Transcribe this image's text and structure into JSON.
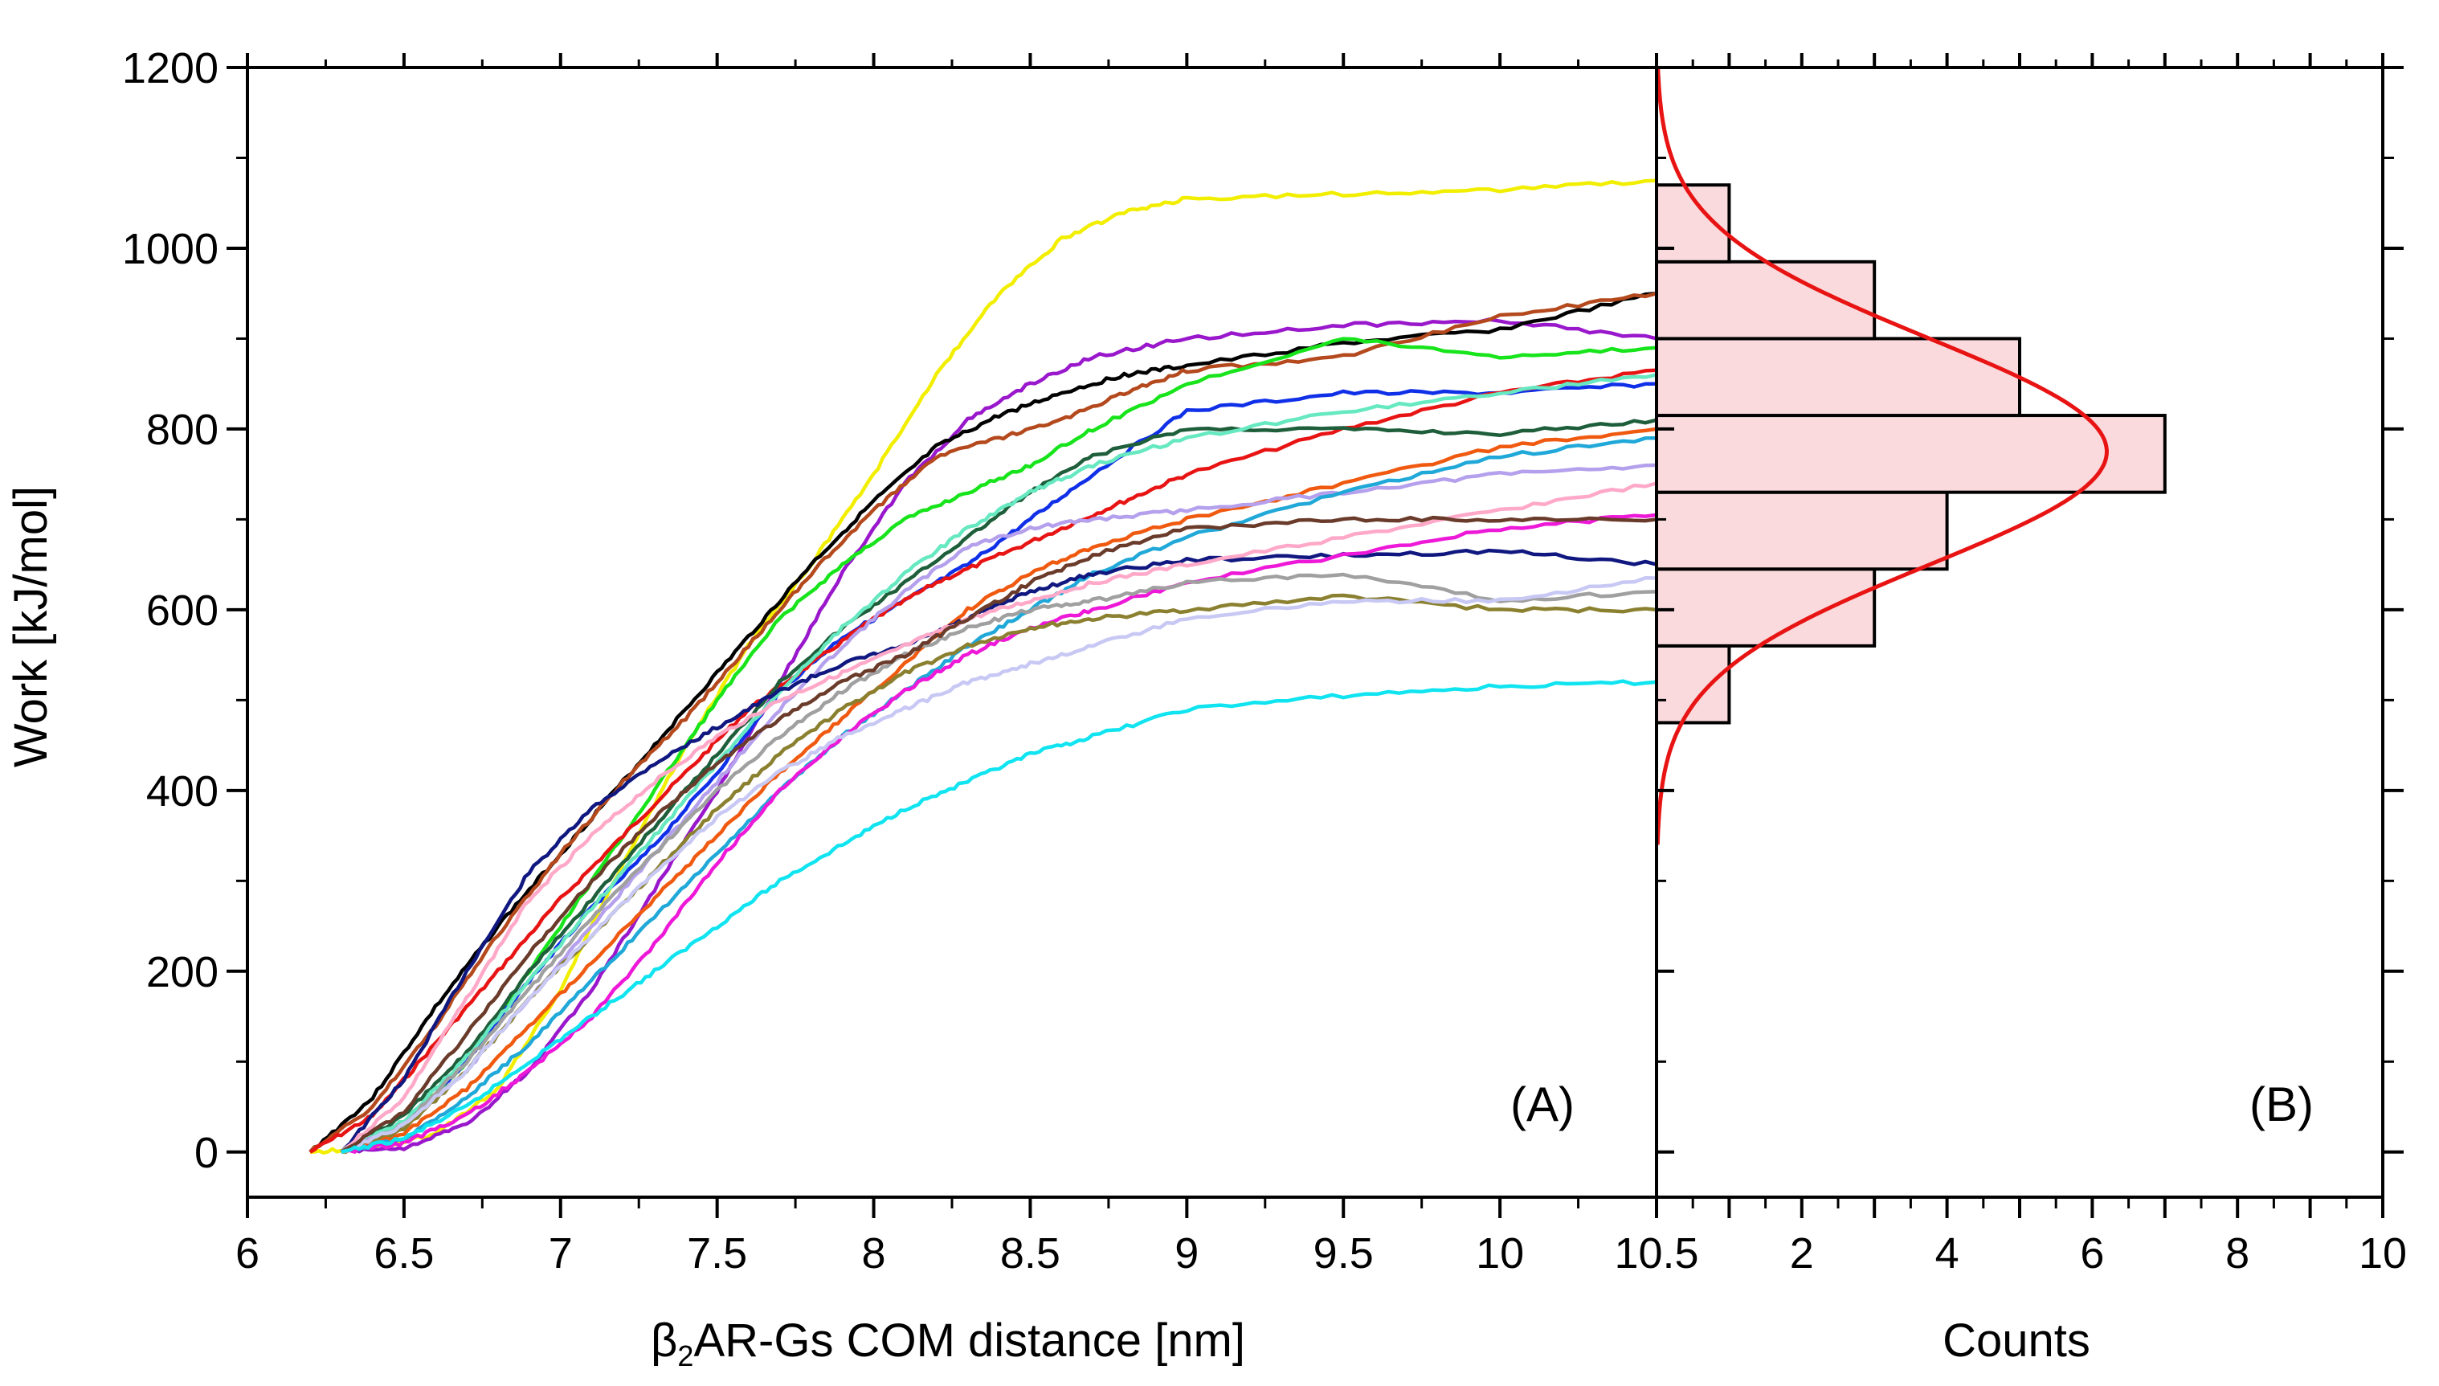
{
  "chart_data": [
    {
      "id": "panel-a",
      "type": "line",
      "panel_label": "(A)",
      "xlabel_prefix": "β",
      "xlabel_sub": "2",
      "xlabel_rest": "AR-Gs COM distance [nm]",
      "ylabel": "Work [kJ/mol]",
      "xlim": [
        6.0,
        10.5
      ],
      "ylim": [
        -50,
        1200
      ],
      "x_ticks": [
        6,
        6.5,
        7,
        7.5,
        8,
        8.5,
        9,
        9.5,
        10,
        10.5
      ],
      "x_tick_labels": [
        "6",
        "6.5",
        "7",
        "7.5",
        "8",
        "8.5",
        "9",
        "9.5",
        "10",
        "10.5"
      ],
      "y_ticks": [
        0,
        200,
        400,
        600,
        800,
        1000,
        1200
      ],
      "y_tick_labels": [
        "0",
        "200",
        "400",
        "600",
        "800",
        "1000",
        "1200"
      ],
      "grid": false,
      "series": [
        {
          "name": "yellow",
          "color": "#f2ee00",
          "x": [
            6.2,
            6.4,
            6.6,
            6.8,
            7.0,
            7.2,
            7.4,
            7.6,
            7.8,
            8.0,
            8.2,
            8.4,
            8.6,
            8.8,
            9.0,
            9.5,
            10.0,
            10.5
          ],
          "y": [
            0,
            5,
            20,
            70,
            180,
            320,
            450,
            560,
            650,
            750,
            860,
            950,
            1010,
            1040,
            1055,
            1060,
            1065,
            1075
          ]
        },
        {
          "name": "purple",
          "color": "#9a18cc",
          "x": [
            6.3,
            6.5,
            6.7,
            6.9,
            7.1,
            7.3,
            7.5,
            7.7,
            7.9,
            8.1,
            8.3,
            8.5,
            8.7,
            9.0,
            9.5,
            10.0,
            10.5
          ],
          "y": [
            0,
            5,
            30,
            90,
            180,
            290,
            400,
            520,
            640,
            740,
            810,
            850,
            880,
            900,
            915,
            920,
            900
          ]
        },
        {
          "name": "black",
          "color": "#000000",
          "x": [
            6.2,
            6.4,
            6.6,
            6.8,
            7.0,
            7.2,
            7.4,
            7.6,
            7.8,
            8.0,
            8.2,
            8.4,
            8.6,
            8.8,
            9.0,
            9.5,
            10.0,
            10.5
          ],
          "y": [
            0,
            60,
            160,
            250,
            330,
            410,
            490,
            570,
            650,
            720,
            780,
            815,
            840,
            860,
            870,
            895,
            910,
            950
          ]
        },
        {
          "name": "brown-orange",
          "color": "#b4491d",
          "x": [
            6.2,
            6.4,
            6.6,
            6.8,
            7.0,
            7.2,
            7.4,
            7.6,
            7.8,
            8.0,
            8.2,
            8.4,
            8.6,
            8.8,
            9.0,
            9.5,
            10.0,
            10.5
          ],
          "y": [
            0,
            50,
            140,
            240,
            330,
            410,
            480,
            560,
            640,
            710,
            770,
            790,
            810,
            840,
            865,
            880,
            925,
            950
          ]
        },
        {
          "name": "green",
          "color": "#18e41c",
          "x": [
            6.3,
            6.5,
            6.7,
            6.9,
            7.1,
            7.3,
            7.5,
            7.7,
            7.9,
            8.1,
            8.3,
            8.5,
            8.7,
            9.0,
            9.5,
            10.0,
            10.5
          ],
          "y": [
            0,
            30,
            100,
            200,
            300,
            400,
            500,
            590,
            650,
            700,
            730,
            760,
            800,
            850,
            900,
            880,
            890
          ]
        },
        {
          "name": "blue",
          "color": "#1030e8",
          "x": [
            6.3,
            6.5,
            6.7,
            6.9,
            7.1,
            7.3,
            7.5,
            7.7,
            7.9,
            8.1,
            8.3,
            8.5,
            8.7,
            9.0,
            9.5,
            10.0,
            10.5
          ],
          "y": [
            0,
            30,
            100,
            190,
            270,
            340,
            420,
            510,
            570,
            610,
            650,
            700,
            750,
            820,
            840,
            840,
            850
          ]
        },
        {
          "name": "red",
          "color": "#e81414",
          "x": [
            6.2,
            6.4,
            6.6,
            6.8,
            7.0,
            7.2,
            7.4,
            7.6,
            7.8,
            8.0,
            8.2,
            8.4,
            8.6,
            8.8,
            9.0,
            9.5,
            10.0,
            10.5
          ],
          "y": [
            0,
            40,
            120,
            200,
            280,
            350,
            420,
            490,
            540,
            590,
            630,
            660,
            690,
            720,
            750,
            800,
            840,
            865
          ]
        },
        {
          "name": "dark-green",
          "color": "#1e5e3a",
          "x": [
            6.3,
            6.5,
            6.7,
            6.9,
            7.1,
            7.3,
            7.5,
            7.7,
            7.9,
            8.1,
            8.3,
            8.5,
            8.7,
            9.0,
            9.5,
            10.0,
            10.5
          ],
          "y": [
            0,
            40,
            110,
            200,
            280,
            360,
            440,
            520,
            580,
            630,
            680,
            730,
            770,
            800,
            800,
            795,
            810
          ]
        },
        {
          "name": "aquamarine",
          "color": "#66e8c0",
          "x": [
            6.3,
            6.5,
            6.7,
            6.9,
            7.1,
            7.3,
            7.5,
            7.7,
            7.9,
            8.1,
            8.3,
            8.5,
            8.7,
            9.0,
            9.5,
            10.0,
            10.5
          ],
          "y": [
            0,
            35,
            105,
            190,
            270,
            350,
            430,
            510,
            580,
            640,
            690,
            730,
            760,
            790,
            820,
            840,
            860
          ]
        },
        {
          "name": "orange",
          "color": "#f05a10",
          "x": [
            6.3,
            6.5,
            6.7,
            6.9,
            7.1,
            7.3,
            7.5,
            7.7,
            7.9,
            8.1,
            8.3,
            8.5,
            8.7,
            9.0,
            9.5,
            10.0,
            10.5
          ],
          "y": [
            0,
            20,
            70,
            140,
            210,
            280,
            350,
            420,
            480,
            540,
            600,
            640,
            670,
            700,
            740,
            780,
            800
          ]
        },
        {
          "name": "lavender",
          "color": "#b4a0ec",
          "x": [
            6.3,
            6.5,
            6.7,
            6.9,
            7.1,
            7.3,
            7.5,
            7.7,
            7.9,
            8.1,
            8.3,
            8.5,
            8.7,
            9.0,
            9.5,
            10.0,
            10.5
          ],
          "y": [
            0,
            30,
            90,
            170,
            250,
            330,
            410,
            490,
            560,
            620,
            670,
            690,
            700,
            710,
            730,
            750,
            760
          ]
        },
        {
          "name": "sky-blue",
          "color": "#20a8d8",
          "x": [
            6.3,
            6.5,
            6.7,
            6.9,
            7.1,
            7.3,
            7.5,
            7.7,
            7.9,
            8.1,
            8.3,
            8.5,
            8.7,
            9.0,
            9.5,
            10.0,
            10.5
          ],
          "y": [
            0,
            15,
            60,
            120,
            190,
            260,
            330,
            400,
            460,
            510,
            560,
            600,
            640,
            680,
            730,
            770,
            790
          ]
        },
        {
          "name": "navy",
          "color": "#101880",
          "x": [
            6.3,
            6.5,
            6.7,
            6.9,
            7.1,
            7.3,
            7.5,
            7.7,
            7.9,
            8.1,
            8.3,
            8.5,
            8.7,
            9.0,
            9.5,
            10.0,
            10.5
          ],
          "y": [
            0,
            80,
            200,
            310,
            380,
            430,
            470,
            510,
            540,
            560,
            590,
            620,
            640,
            655,
            660,
            665,
            650
          ]
        },
        {
          "name": "pink",
          "color": "#ffa8c8",
          "x": [
            6.3,
            6.5,
            6.7,
            6.9,
            7.1,
            7.3,
            7.5,
            7.7,
            7.9,
            8.1,
            8.3,
            8.5,
            8.7,
            9.0,
            9.5,
            10.0,
            10.5
          ],
          "y": [
            0,
            60,
            170,
            280,
            350,
            410,
            460,
            500,
            530,
            560,
            590,
            610,
            630,
            650,
            680,
            710,
            740
          ]
        },
        {
          "name": "magenta",
          "color": "#ee18d8",
          "x": [
            6.3,
            6.5,
            6.7,
            6.9,
            7.1,
            7.3,
            7.5,
            7.7,
            7.9,
            8.1,
            8.3,
            8.5,
            8.7,
            9.0,
            9.5,
            10.0,
            10.5
          ],
          "y": [
            0,
            10,
            40,
            90,
            150,
            230,
            320,
            400,
            460,
            510,
            550,
            580,
            600,
            630,
            660,
            690,
            705
          ]
        },
        {
          "name": "gray",
          "color": "#a0a0a0",
          "x": [
            6.3,
            6.5,
            6.7,
            6.9,
            7.1,
            7.3,
            7.5,
            7.7,
            7.9,
            8.1,
            8.3,
            8.5,
            8.7,
            9.0,
            9.5,
            10.0,
            10.5
          ],
          "y": [
            0,
            30,
            100,
            180,
            260,
            330,
            400,
            460,
            510,
            550,
            580,
            600,
            610,
            630,
            640,
            610,
            620
          ]
        },
        {
          "name": "olive",
          "color": "#8a8030",
          "x": [
            6.3,
            6.5,
            6.7,
            6.9,
            7.1,
            7.3,
            7.5,
            7.7,
            7.9,
            8.1,
            8.3,
            8.5,
            8.7,
            9.0,
            9.5,
            10.0,
            10.5
          ],
          "y": [
            0,
            25,
            90,
            170,
            240,
            310,
            380,
            440,
            490,
            530,
            560,
            580,
            590,
            600,
            615,
            600,
            600
          ]
        },
        {
          "name": "light-periwinkle",
          "color": "#c8c8f4",
          "x": [
            6.3,
            6.5,
            6.7,
            6.9,
            7.1,
            7.3,
            7.5,
            7.7,
            7.9,
            8.1,
            8.3,
            8.5,
            8.7,
            9.0,
            9.5,
            10.0,
            10.5
          ],
          "y": [
            0,
            30,
            90,
            170,
            240,
            310,
            370,
            420,
            460,
            490,
            520,
            540,
            560,
            590,
            610,
            610,
            635
          ]
        },
        {
          "name": "dark-brown",
          "color": "#6a3b2a",
          "x": [
            6.3,
            6.5,
            6.7,
            6.9,
            7.1,
            7.3,
            7.5,
            7.7,
            7.9,
            8.1,
            8.3,
            8.5,
            8.7,
            9.0,
            9.5,
            10.0,
            10.5
          ],
          "y": [
            0,
            45,
            130,
            220,
            300,
            370,
            430,
            480,
            520,
            550,
            590,
            630,
            660,
            690,
            700,
            700,
            700
          ]
        },
        {
          "name": "cyan",
          "color": "#10e4f0",
          "x": [
            6.3,
            6.5,
            6.7,
            6.9,
            7.1,
            7.3,
            7.5,
            7.7,
            7.9,
            8.1,
            8.3,
            8.5,
            8.7,
            9.0,
            9.5,
            10.0,
            10.5
          ],
          "y": [
            0,
            15,
            50,
            100,
            150,
            200,
            250,
            300,
            340,
            380,
            410,
            440,
            460,
            490,
            505,
            515,
            520
          ]
        }
      ]
    },
    {
      "id": "panel-b",
      "type": "bar",
      "orientation": "horizontal",
      "panel_label": "(B)",
      "xlabel": "Counts",
      "xlim": [
        0,
        10
      ],
      "ylim": [
        -50,
        1200
      ],
      "x_ticks": [
        2,
        4,
        6,
        8,
        10
      ],
      "x_tick_labels": [
        "2",
        "4",
        "6",
        "8",
        "10"
      ],
      "bar_fill": "#fadadd",
      "bar_edge": "#000000",
      "bins": [
        {
          "low": 475,
          "high": 560,
          "count": 1
        },
        {
          "low": 560,
          "high": 645,
          "count": 3
        },
        {
          "low": 645,
          "high": 730,
          "count": 4
        },
        {
          "low": 730,
          "high": 815,
          "count": 7
        },
        {
          "low": 815,
          "high": 900,
          "count": 5
        },
        {
          "low": 900,
          "high": 985,
          "count": 3
        },
        {
          "low": 985,
          "high": 1070,
          "count": 1
        }
      ],
      "fit": {
        "type": "gaussian",
        "color": "#e81414",
        "mean": 775,
        "sigma": 125,
        "amplitude": 6.2,
        "y_range": [
          340,
          1200
        ]
      }
    }
  ]
}
